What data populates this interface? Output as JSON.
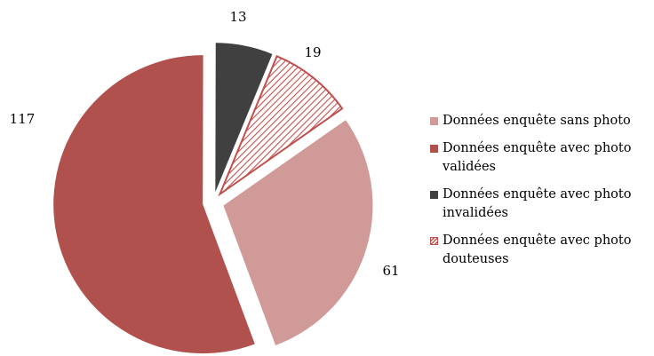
{
  "chart_data": {
    "type": "pie",
    "categories": [
      "Données enquête sans photo",
      "Données enquête avec photo validées",
      "Données enquête avec photo invalidées",
      "Données enquête avec photo douteuses"
    ],
    "values": [
      61,
      117,
      13,
      19
    ],
    "colors": [
      "#d09a98",
      "#b0514e",
      "#404040",
      "#c0504d"
    ],
    "hatched": [
      false,
      false,
      false,
      true
    ],
    "legend": "right"
  }
}
